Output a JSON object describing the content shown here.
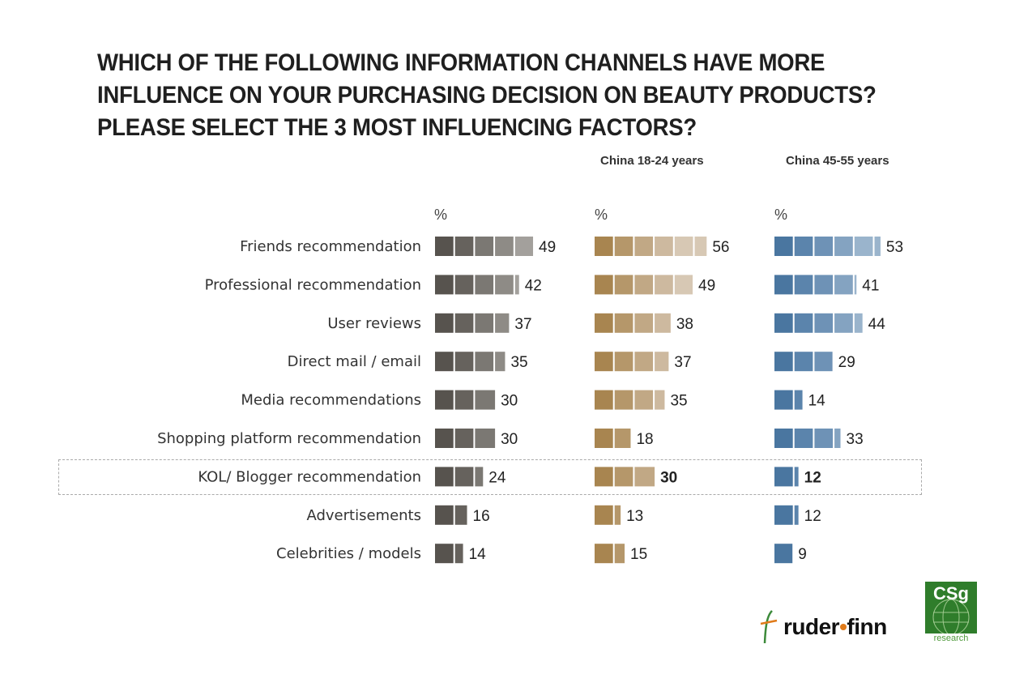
{
  "title": "WHICH OF THE FOLLOWING INFORMATION CHANNELS HAVE MORE INFLUENCE ON YOUR PURCHASING DECISION ON BEAUTY PRODUCTS? PLEASE SELECT THE 3 MOST INFLUENCING FACTORS?",
  "unit_label": "%",
  "highlighted_category": "KOL/ Blogger recommendation",
  "logos": {
    "ruder_finn": {
      "part1": "ruder",
      "dot": "•",
      "part2": "finn"
    },
    "csg": {
      "mark": "CSg",
      "sub": "research"
    }
  },
  "chart_data": {
    "type": "bar",
    "orientation": "horizontal",
    "categories": [
      "Friends recommendation",
      "Professional recommendation",
      "User reviews",
      "Direct mail / email",
      "Media recommendations",
      "Shopping platform recommendation",
      "KOL/ Blogger recommendation",
      "Advertisements",
      "Celebrities / models"
    ],
    "series": [
      {
        "name": "",
        "values": [
          49,
          42,
          37,
          35,
          30,
          30,
          24,
          16,
          14
        ],
        "colors": [
          "#57534e",
          "#66625d",
          "#7b7873",
          "#8e8b86",
          "#a3a09c"
        ],
        "value_color": "#222222"
      },
      {
        "name": "China 18-24 years",
        "values": [
          56,
          49,
          38,
          37,
          35,
          18,
          30,
          13,
          15
        ],
        "colors": [
          "#a88550",
          "#b5976a",
          "#c1a885",
          "#cdb99f",
          "#d7c8b4"
        ],
        "value_color": "#222222",
        "highlight_color": "#a88550"
      },
      {
        "name": "China 45-55 years",
        "values": [
          53,
          41,
          44,
          29,
          14,
          33,
          12,
          12,
          9
        ],
        "colors": [
          "#4a76a0",
          "#5b84ac",
          "#6e92b6",
          "#84a3c1",
          "#9ab4cc"
        ],
        "value_color": "#222222",
        "highlight_color": "#4a76a0"
      }
    ],
    "segment_size": 10,
    "xlim": [
      0,
      60
    ],
    "grid": false,
    "legend": "column headers above bars"
  }
}
